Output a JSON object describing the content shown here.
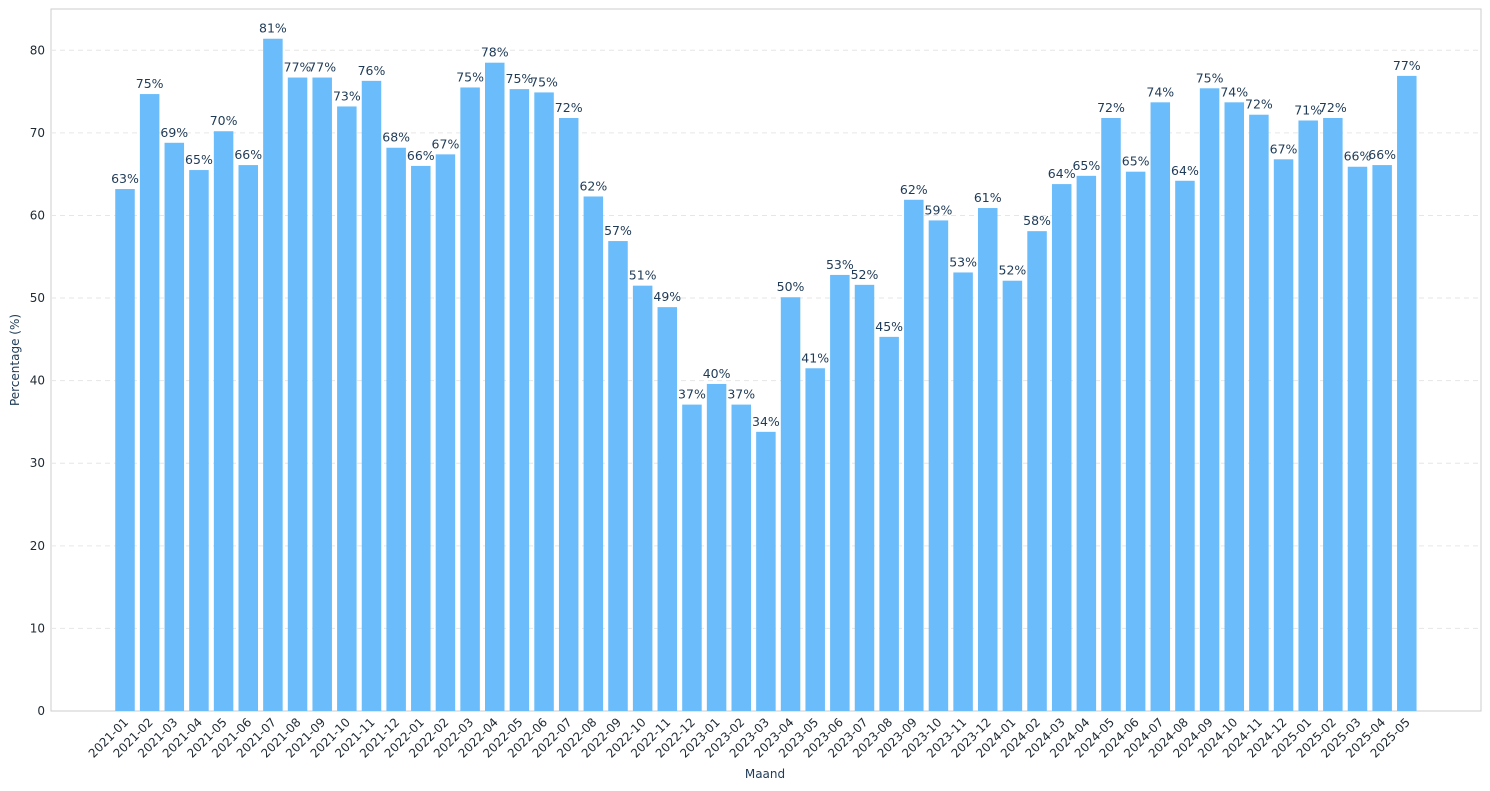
{
  "chart_data": {
    "type": "bar",
    "title": "",
    "xlabel": "Maand",
    "ylabel": "Percentage (%)",
    "ylim": [
      0,
      85
    ],
    "yticks": [
      0,
      10,
      20,
      30,
      40,
      50,
      60,
      70,
      80
    ],
    "grid": true,
    "bar_color": "#6bbcfa",
    "label_suffix": "%",
    "categories": [
      "2021-01",
      "2021-02",
      "2021-03",
      "2021-04",
      "2021-05",
      "2021-06",
      "2021-07",
      "2021-08",
      "2021-09",
      "2021-10",
      "2021-11",
      "2021-12",
      "2022-01",
      "2022-02",
      "2022-03",
      "2022-04",
      "2022-05",
      "2022-06",
      "2022-07",
      "2022-08",
      "2022-09",
      "2022-10",
      "2022-11",
      "2022-12",
      "2023-01",
      "2023-02",
      "2023-03",
      "2023-04",
      "2023-05",
      "2023-06",
      "2023-07",
      "2023-08",
      "2023-09",
      "2023-10",
      "2023-11",
      "2023-12",
      "2024-01",
      "2024-02",
      "2024-03",
      "2024-04",
      "2024-05",
      "2024-06",
      "2024-07",
      "2024-08",
      "2024-09",
      "2024-10",
      "2024-11",
      "2024-12",
      "2025-01",
      "2025-02",
      "2025-03",
      "2025-04",
      "2025-05"
    ],
    "values": [
      63.2,
      74.7,
      68.8,
      65.5,
      70.2,
      66.1,
      81.4,
      76.7,
      76.7,
      73.2,
      76.3,
      68.2,
      66.0,
      67.4,
      75.5,
      78.5,
      75.3,
      74.9,
      71.8,
      62.3,
      56.9,
      51.5,
      48.9,
      37.1,
      39.6,
      37.1,
      33.8,
      50.1,
      41.5,
      52.8,
      51.6,
      45.3,
      61.9,
      59.4,
      53.1,
      60.9,
      52.1,
      58.1,
      63.8,
      64.8,
      71.8,
      65.3,
      73.7,
      64.2,
      75.4,
      73.7,
      72.2,
      66.8,
      71.5,
      71.8,
      65.9,
      66.1,
      76.9
    ],
    "labels": [
      "63%",
      "75%",
      "69%",
      "65%",
      "70%",
      "66%",
      "81%",
      "77%",
      "77%",
      "73%",
      "76%",
      "68%",
      "66%",
      "67%",
      "75%",
      "78%",
      "75%",
      "75%",
      "72%",
      "62%",
      "57%",
      "51%",
      "49%",
      "37%",
      "40%",
      "37%",
      "34%",
      "50%",
      "41%",
      "53%",
      "52%",
      "45%",
      "62%",
      "59%",
      "53%",
      "61%",
      "52%",
      "58%",
      "64%",
      "65%",
      "72%",
      "65%",
      "74%",
      "64%",
      "75%",
      "74%",
      "72%",
      "67%",
      "71%",
      "72%",
      "66%",
      "66%",
      "77%"
    ]
  }
}
